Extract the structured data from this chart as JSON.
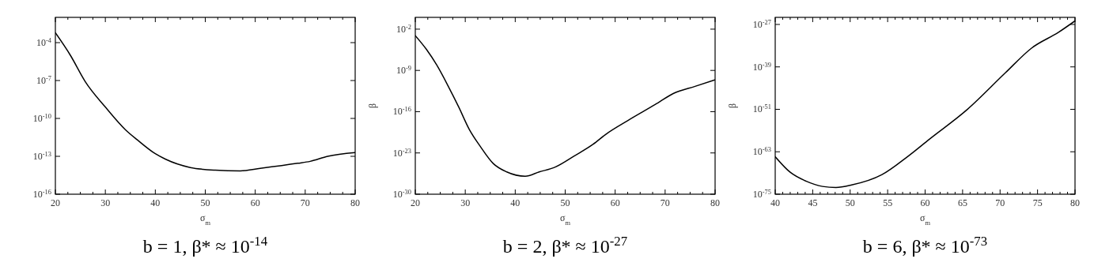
{
  "chart_data": [
    {
      "type": "line",
      "title": "b = 1, β* ≈ 10$^{-14}$",
      "xlabel": "σ$_{m}$",
      "log": "y",
      "xlim": [
        20,
        80
      ],
      "ylim": [
        1e-16,
        0.01
      ],
      "xticks": [
        20,
        {
          "value": 22.5,
          "label": null
        },
        {
          "value": 25,
          "label": null
        },
        {
          "value": 27.5,
          "label": null
        },
        30,
        {
          "value": 32.5,
          "label": null
        },
        {
          "value": 35,
          "label": null
        },
        {
          "value": 37.5,
          "label": null
        },
        40,
        {
          "value": 42.5,
          "label": null
        },
        {
          "value": 45,
          "label": null
        },
        {
          "value": 47.5,
          "label": null
        },
        50,
        {
          "value": 52.5,
          "label": null
        },
        {
          "value": 55,
          "label": null
        },
        {
          "value": 57.5,
          "label": null
        },
        60,
        {
          "value": 62.5,
          "label": null
        },
        {
          "value": 65,
          "label": null
        },
        {
          "value": 67.5,
          "label": null
        },
        70,
        {
          "value": 72.5,
          "label": null
        },
        {
          "value": 75,
          "label": null
        },
        {
          "value": 77.5,
          "label": null
        },
        80
      ],
      "yticks": [
        {
          "value": 1e-16,
          "label": "10$^{-16}$"
        },
        {
          "value": 1e-13,
          "label": "10$^{-13}$"
        },
        {
          "value": 1e-10,
          "label": "10$^{-10}$"
        },
        {
          "value": 1e-07,
          "label": "10$^{-7}$"
        },
        {
          "value": 0.0001,
          "label": "10$^{-4}$"
        }
      ],
      "x": [
        20,
        23,
        26,
        30,
        34,
        36.4,
        40,
        42,
        47,
        52,
        57,
        61,
        68.5,
        71,
        74.5,
        80
      ],
      "series": [
        {
          "color": "#000000",
          "values": [
            0.0006,
            1e-05,
            8e-08,
            8e-10,
            1.3e-11,
            2e-12,
            1.6e-13,
            6e-14,
            1.3e-14,
            8e-15,
            7e-15,
            1.1e-14,
            2.8e-14,
            4e-14,
            1e-13,
            2e-13
          ]
        }
      ]
    },
    {
      "type": "line",
      "title": "b = 2, β* ≈ 10$^{-27}$",
      "xlabel": "σ$_{m}$",
      "ylabel": "β",
      "log": "y",
      "xlim": [
        20,
        80
      ],
      "ylim": [
        1e-30,
        1
      ],
      "xticks": [
        20,
        {
          "value": 22.5,
          "label": null
        },
        {
          "value": 25,
          "label": null
        },
        {
          "value": 27.5,
          "label": null
        },
        30,
        {
          "value": 32.5,
          "label": null
        },
        {
          "value": 35,
          "label": null
        },
        {
          "value": 37.5,
          "label": null
        },
        40,
        {
          "value": 42.5,
          "label": null
        },
        {
          "value": 45,
          "label": null
        },
        {
          "value": 47.5,
          "label": null
        },
        50,
        {
          "value": 52.5,
          "label": null
        },
        {
          "value": 55,
          "label": null
        },
        {
          "value": 57.5,
          "label": null
        },
        60,
        {
          "value": 62.5,
          "label": null
        },
        {
          "value": 65,
          "label": null
        },
        {
          "value": 67.5,
          "label": null
        },
        70,
        {
          "value": 72.5,
          "label": null
        },
        {
          "value": 75,
          "label": null
        },
        {
          "value": 77.5,
          "label": null
        },
        80
      ],
      "yticks": [
        {
          "value": 1e-30,
          "label": "10$^{-30}$"
        },
        {
          "value": 1e-23,
          "label": "10$^{-23}$"
        },
        {
          "value": 1e-16,
          "label": "10$^{-16}$"
        },
        {
          "value": 1e-09,
          "label": "10$^{-9}$"
        },
        {
          "value": 0.01,
          "label": "10$^{-2}$"
        }
      ],
      "x": [
        20,
        22.2,
        24.3,
        26.5,
        28.7,
        30.8,
        33,
        35.6,
        38.3,
        42,
        44.8,
        48,
        51.8,
        55.6,
        58.2,
        62.5,
        68,
        71.7,
        76,
        80
      ],
      "series": [
        {
          "color": "#000000",
          "values": [
            0.0008,
            4e-06,
            8e-09,
            3e-12,
            6e-16,
            1e-19,
            1.3e-22,
            1.6e-25,
            6e-27,
            1.1e-27,
            6e-27,
            4e-26,
            3e-24,
            3e-22,
            1.6e-20,
            3e-18,
            1.6e-15,
            1.3e-13,
            2e-12,
            2.5e-11
          ]
        }
      ]
    },
    {
      "type": "line",
      "title": "b = 6, β* ≈ 10$^{-73}$",
      "xlabel": "σ$_{m}$",
      "ylabel": "β",
      "log": "y",
      "xlim": [
        40,
        80
      ],
      "ylim": [
        1e-75,
        1e-25
      ],
      "xticks": [
        40,
        {
          "value": 41,
          "label": null
        },
        {
          "value": 42,
          "label": null
        },
        {
          "value": 43,
          "label": null
        },
        {
          "value": 44,
          "label": null
        },
        45,
        {
          "value": 46,
          "label": null
        },
        {
          "value": 47,
          "label": null
        },
        {
          "value": 48,
          "label": null
        },
        {
          "value": 49,
          "label": null
        },
        50,
        {
          "value": 51,
          "label": null
        },
        {
          "value": 52,
          "label": null
        },
        {
          "value": 53,
          "label": null
        },
        {
          "value": 54,
          "label": null
        },
        55,
        {
          "value": 56,
          "label": null
        },
        {
          "value": 57,
          "label": null
        },
        {
          "value": 58,
          "label": null
        },
        {
          "value": 59,
          "label": null
        },
        60,
        {
          "value": 61,
          "label": null
        },
        {
          "value": 62,
          "label": null
        },
        {
          "value": 63,
          "label": null
        },
        {
          "value": 64,
          "label": null
        },
        65,
        {
          "value": 66,
          "label": null
        },
        {
          "value": 67,
          "label": null
        },
        {
          "value": 68,
          "label": null
        },
        {
          "value": 69,
          "label": null
        },
        70,
        {
          "value": 71,
          "label": null
        },
        {
          "value": 72,
          "label": null
        },
        {
          "value": 73,
          "label": null
        },
        {
          "value": 74,
          "label": null
        },
        75,
        {
          "value": 76,
          "label": null
        },
        {
          "value": 77,
          "label": null
        },
        {
          "value": 78,
          "label": null
        },
        {
          "value": 79,
          "label": null
        },
        80
      ],
      "yticks": [
        {
          "value": 1e-75,
          "label": "10$^{-75}$"
        },
        {
          "value": 1e-63,
          "label": "10$^{-63}$"
        },
        {
          "value": 1e-51,
          "label": "10$^{-51}$"
        },
        {
          "value": 1e-39,
          "label": "10$^{-39}$"
        },
        {
          "value": 1e-27,
          "label": "10$^{-27}$"
        }
      ],
      "x": [
        40,
        42,
        44.1,
        46.3,
        48.1,
        50.2,
        54.2,
        57.7,
        60.6,
        65.6,
        70.7,
        74.2,
        77.8,
        80
      ],
      "series": [
        {
          "color": "#000000",
          "values": [
            4e-65,
            1.6e-69,
            5e-72,
            1.6e-73,
            8e-74,
            4e-73,
            3e-70,
            5e-65,
            4e-60,
            8e-52,
            2e-41,
            2e-34,
            6e-30,
            1e-26
          ]
        }
      ]
    }
  ]
}
